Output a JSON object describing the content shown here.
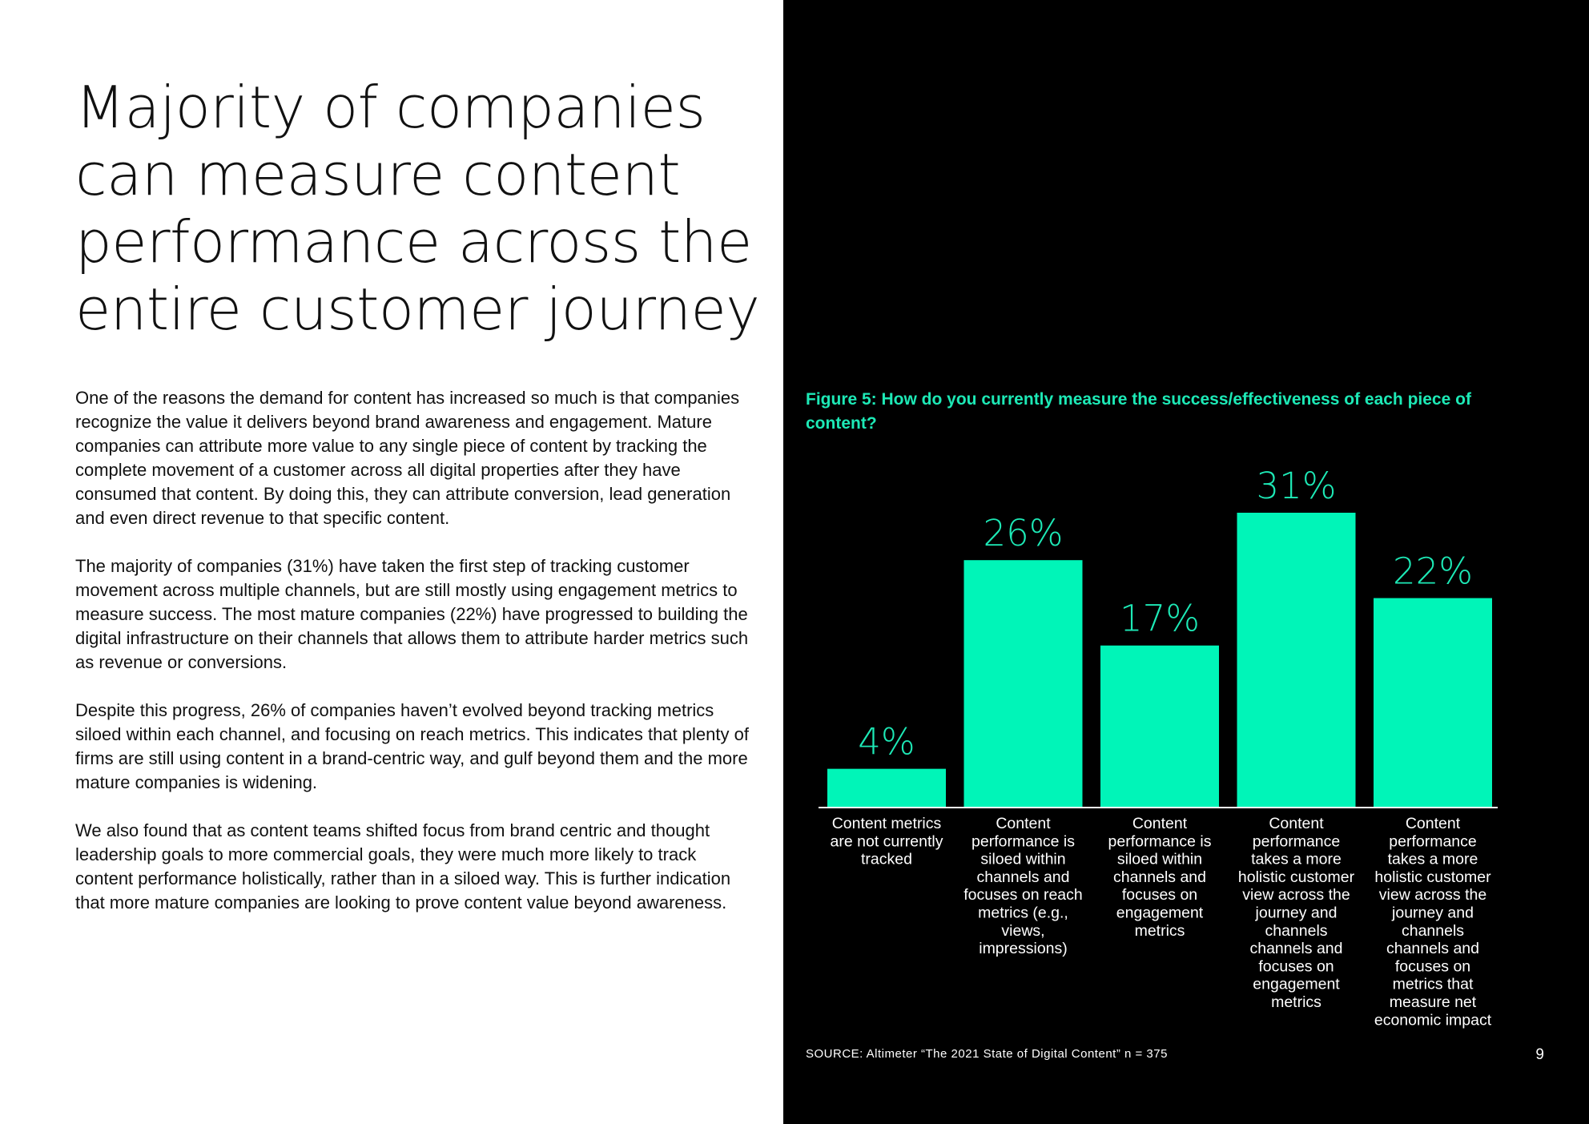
{
  "page": {
    "title_lines": [
      "Majority of companies",
      "can measure content",
      "performance across the",
      "entire customer journey"
    ],
    "paragraphs": [
      "One of the reasons the demand for content has increased so much is that companies recognize the value it delivers beyond brand awareness and engagement. Mature companies can attribute more value to any single piece of content by tracking the complete movement of a customer across all digital properties after they have consumed that content. By doing this, they can attribute conversion, lead generation and even direct revenue to that specific content.",
      "The majority of companies (31%) have taken the first step of tracking customer movement across multiple channels, but are still mostly using engagement metrics to measure success. The most mature companies (22%) have progressed to building the digital infrastructure on their channels that allows them to attribute harder metrics such as revenue or conversions.",
      "Despite this progress, 26% of companies haven’t evolved beyond tracking metrics siloed within each channel, and focusing on reach metrics. This indicates that plenty of firms are still using content in a brand-centric way, and gulf beyond them and the more mature companies is widening.",
      "We also found that as content teams shifted focus from brand centric and thought leadership goals to more commercial goals, they were much more likely to track content performance holistically, rather than in a siloed way. This is further indication that more mature companies are looking to prove content value beyond awareness."
    ],
    "source": "SOURCE: Altimeter “The 2021 State of Digital Content” n = 375",
    "page_number": "9"
  },
  "colors": {
    "accent": "#1de9b6",
    "bar": "#00f5b8",
    "panel_bg": "#000000",
    "axis": "#ffffff",
    "category_text": "#ffffff"
  },
  "chart_data": {
    "type": "bar",
    "title": "Figure 5: How do you currently measure the success/effectiveness of each piece of content?",
    "categories": [
      [
        "Content metrics",
        "are not currently",
        "tracked"
      ],
      [
        "Content",
        "performance is",
        "siloed within",
        "channels and",
        "focuses on reach",
        "metrics (e.g.,",
        "views,",
        "impressions)"
      ],
      [
        "Content",
        "performance is",
        "siloed within",
        "channels and",
        "focuses on",
        "engagement",
        "metrics"
      ],
      [
        "Content",
        "performance",
        "takes a more",
        "holistic customer",
        "view across the",
        "journey and",
        "channels",
        "channels and",
        "focuses on",
        "engagement",
        "metrics"
      ],
      [
        "Content",
        "performance",
        "takes a more",
        "holistic customer",
        "view across the",
        "journey and",
        "channels",
        "channels and",
        "focuses on",
        "metrics that",
        "measure net",
        "economic impact"
      ]
    ],
    "values": [
      4,
      26,
      17,
      31,
      22
    ],
    "value_labels": [
      "4%",
      "26%",
      "17%",
      "31%",
      "22%"
    ],
    "unit": "%",
    "ylim": [
      0,
      31
    ],
    "grid": false,
    "legend": "none"
  }
}
